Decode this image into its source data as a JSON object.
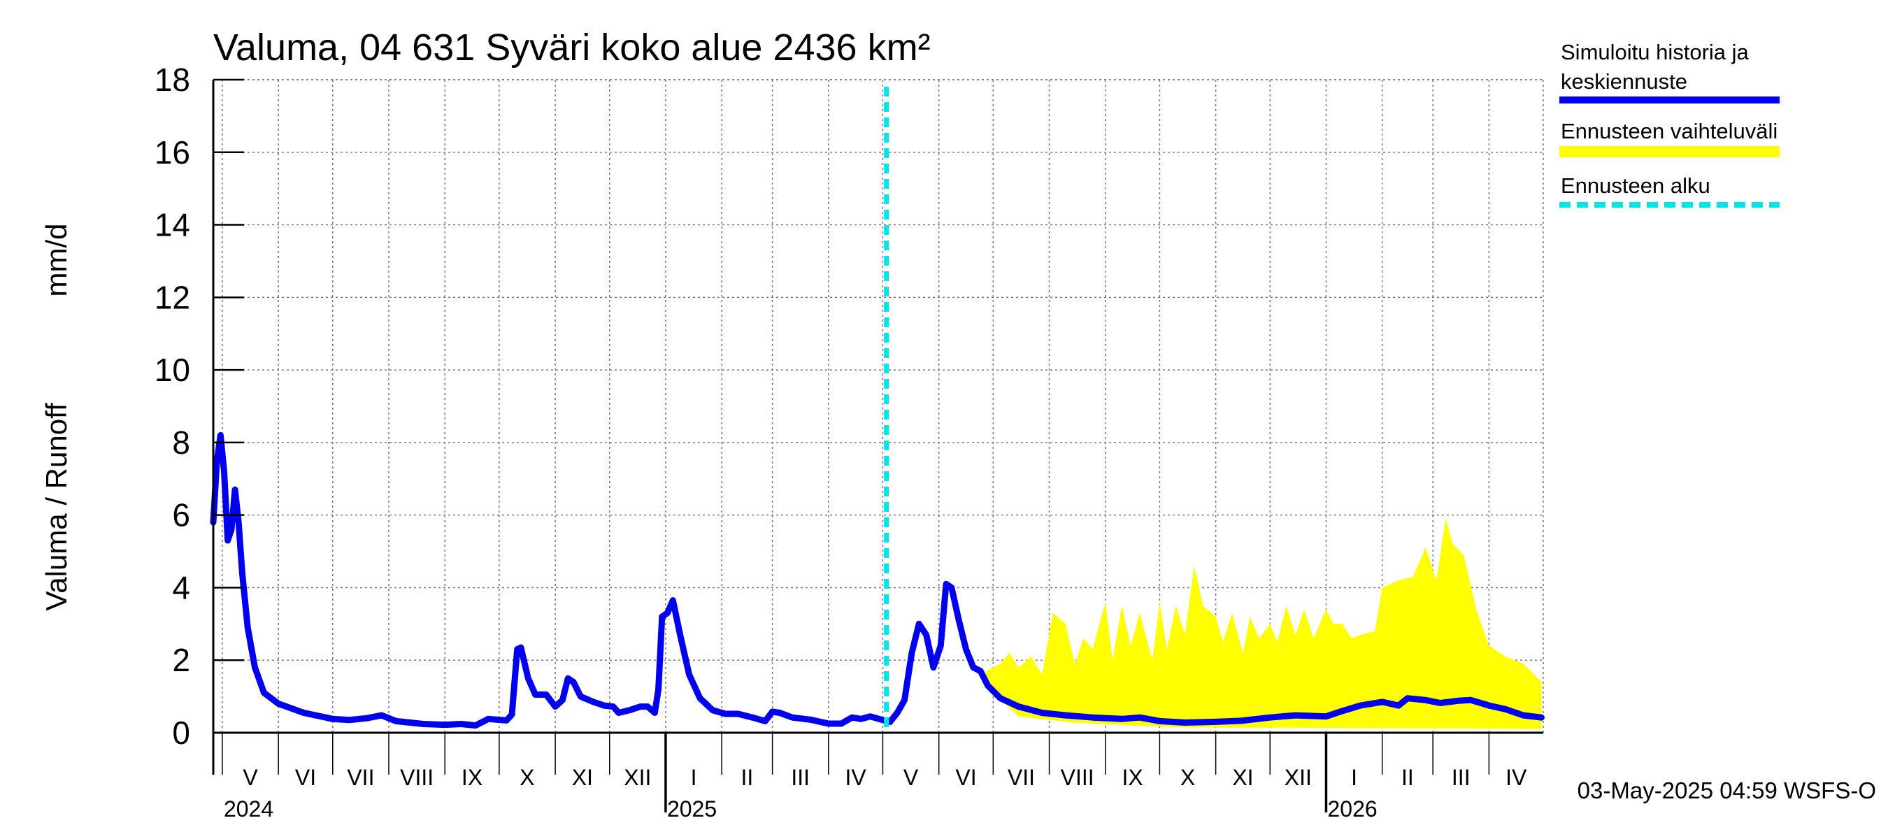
{
  "chart_data": {
    "type": "line",
    "title": "Valuma, 04 631 Syväri koko alue 2436 km²",
    "ylabel_left": "Valuma / Runoff",
    "ylabel_right": "mm/d",
    "ylim": [
      0,
      18
    ],
    "yticks": [
      0,
      2,
      4,
      6,
      8,
      10,
      12,
      14,
      16,
      18
    ],
    "xrange": [
      "2024-04-26",
      "2026-05-01"
    ],
    "forecast_start": "2025-05-03",
    "grid": true,
    "legend_position": "right",
    "month_labels": [
      {
        "label": "V",
        "start": "2024-05-01",
        "end": "2024-06-01"
      },
      {
        "label": "VI",
        "start": "2024-06-01",
        "end": "2024-07-01"
      },
      {
        "label": "VII",
        "start": "2024-07-01",
        "end": "2024-08-01"
      },
      {
        "label": "VIII",
        "start": "2024-08-01",
        "end": "2024-09-01"
      },
      {
        "label": "IX",
        "start": "2024-09-01",
        "end": "2024-10-01"
      },
      {
        "label": "X",
        "start": "2024-10-01",
        "end": "2024-11-01"
      },
      {
        "label": "XI",
        "start": "2024-11-01",
        "end": "2024-12-01"
      },
      {
        "label": "XII",
        "start": "2024-12-01",
        "end": "2025-01-01"
      },
      {
        "label": "I",
        "start": "2025-01-01",
        "end": "2025-02-01"
      },
      {
        "label": "II",
        "start": "2025-02-01",
        "end": "2025-03-01"
      },
      {
        "label": "III",
        "start": "2025-03-01",
        "end": "2025-04-01"
      },
      {
        "label": "IV",
        "start": "2025-04-01",
        "end": "2025-05-01"
      },
      {
        "label": "V",
        "start": "2025-05-01",
        "end": "2025-06-01"
      },
      {
        "label": "VI",
        "start": "2025-06-01",
        "end": "2025-07-01"
      },
      {
        "label": "VII",
        "start": "2025-07-01",
        "end": "2025-08-01"
      },
      {
        "label": "VIII",
        "start": "2025-08-01",
        "end": "2025-09-01"
      },
      {
        "label": "IX",
        "start": "2025-09-01",
        "end": "2025-10-01"
      },
      {
        "label": "X",
        "start": "2025-10-01",
        "end": "2025-11-01"
      },
      {
        "label": "XI",
        "start": "2025-11-01",
        "end": "2025-12-01"
      },
      {
        "label": "XII",
        "start": "2025-12-01",
        "end": "2026-01-01"
      },
      {
        "label": "I",
        "start": "2026-01-01",
        "end": "2026-02-01"
      },
      {
        "label": "II",
        "start": "2026-02-01",
        "end": "2026-03-01"
      },
      {
        "label": "III",
        "start": "2026-03-01",
        "end": "2026-04-01"
      },
      {
        "label": "IV",
        "start": "2026-04-01",
        "end": "2026-05-01"
      }
    ],
    "year_labels": [
      {
        "label": "2024",
        "date": "2024-05-01"
      },
      {
        "label": "2025",
        "date": "2025-01-01"
      },
      {
        "label": "2026",
        "date": "2026-01-01"
      }
    ],
    "series": [
      {
        "name": "Simuloitu historia ja keskiennuste",
        "role": "line",
        "color": "#0000ee",
        "points": [
          [
            "2024-04-26",
            5.8
          ],
          [
            "2024-04-28",
            7.5
          ],
          [
            "2024-04-30",
            8.2
          ],
          [
            "2024-05-02",
            7.2
          ],
          [
            "2024-05-04",
            5.3
          ],
          [
            "2024-05-06",
            5.6
          ],
          [
            "2024-05-08",
            6.7
          ],
          [
            "2024-05-10",
            5.8
          ],
          [
            "2024-05-12",
            4.4
          ],
          [
            "2024-05-15",
            2.9
          ],
          [
            "2024-05-19",
            1.8
          ],
          [
            "2024-05-24",
            1.1
          ],
          [
            "2024-06-01",
            0.8
          ],
          [
            "2024-06-15",
            0.55
          ],
          [
            "2024-07-01",
            0.38
          ],
          [
            "2024-07-10",
            0.35
          ],
          [
            "2024-07-20",
            0.4
          ],
          [
            "2024-07-28",
            0.48
          ],
          [
            "2024-08-05",
            0.32
          ],
          [
            "2024-08-20",
            0.24
          ],
          [
            "2024-09-01",
            0.22
          ],
          [
            "2024-09-10",
            0.24
          ],
          [
            "2024-09-18",
            0.2
          ],
          [
            "2024-09-25",
            0.38
          ],
          [
            "2024-10-05",
            0.34
          ],
          [
            "2024-10-08",
            0.5
          ],
          [
            "2024-10-11",
            2.3
          ],
          [
            "2024-10-13",
            2.35
          ],
          [
            "2024-10-17",
            1.5
          ],
          [
            "2024-10-21",
            1.05
          ],
          [
            "2024-10-27",
            1.05
          ],
          [
            "2024-11-01",
            0.72
          ],
          [
            "2024-11-05",
            0.9
          ],
          [
            "2024-11-08",
            1.5
          ],
          [
            "2024-11-11",
            1.4
          ],
          [
            "2024-11-15",
            1.0
          ],
          [
            "2024-11-22",
            0.85
          ],
          [
            "2024-11-28",
            0.75
          ],
          [
            "2024-12-03",
            0.72
          ],
          [
            "2024-12-06",
            0.55
          ],
          [
            "2024-12-12",
            0.62
          ],
          [
            "2024-12-18",
            0.72
          ],
          [
            "2024-12-22",
            0.72
          ],
          [
            "2024-12-26",
            0.55
          ],
          [
            "2024-12-28",
            1.2
          ],
          [
            "2024-12-30",
            3.2
          ],
          [
            "2025-01-02",
            3.3
          ],
          [
            "2025-01-05",
            3.65
          ],
          [
            "2025-01-09",
            2.7
          ],
          [
            "2025-01-14",
            1.6
          ],
          [
            "2025-01-20",
            0.95
          ],
          [
            "2025-01-27",
            0.62
          ],
          [
            "2025-02-03",
            0.52
          ],
          [
            "2025-02-10",
            0.52
          ],
          [
            "2025-02-18",
            0.42
          ],
          [
            "2025-02-25",
            0.32
          ],
          [
            "2025-03-01",
            0.58
          ],
          [
            "2025-03-05",
            0.55
          ],
          [
            "2025-03-12",
            0.42
          ],
          [
            "2025-03-22",
            0.36
          ],
          [
            "2025-04-01",
            0.25
          ],
          [
            "2025-04-08",
            0.25
          ],
          [
            "2025-04-14",
            0.42
          ],
          [
            "2025-04-19",
            0.38
          ],
          [
            "2025-04-24",
            0.45
          ],
          [
            "2025-05-01",
            0.35
          ],
          [
            "2025-05-05",
            0.3
          ],
          [
            "2025-05-09",
            0.55
          ],
          [
            "2025-05-13",
            0.9
          ],
          [
            "2025-05-17",
            2.2
          ],
          [
            "2025-05-21",
            3.0
          ],
          [
            "2025-05-25",
            2.7
          ],
          [
            "2025-05-29",
            1.8
          ],
          [
            "2025-06-02",
            2.4
          ],
          [
            "2025-06-05",
            4.1
          ],
          [
            "2025-06-08",
            4.0
          ],
          [
            "2025-06-12",
            3.1
          ],
          [
            "2025-06-16",
            2.3
          ],
          [
            "2025-06-20",
            1.8
          ],
          [
            "2025-06-24",
            1.7
          ],
          [
            "2025-06-28",
            1.3
          ],
          [
            "2025-07-05",
            0.95
          ],
          [
            "2025-07-15",
            0.72
          ],
          [
            "2025-07-28",
            0.55
          ],
          [
            "2025-08-10",
            0.48
          ],
          [
            "2025-08-25",
            0.42
          ],
          [
            "2025-09-10",
            0.38
          ],
          [
            "2025-09-20",
            0.42
          ],
          [
            "2025-10-01",
            0.32
          ],
          [
            "2025-10-15",
            0.28
          ],
          [
            "2025-11-01",
            0.3
          ],
          [
            "2025-11-15",
            0.33
          ],
          [
            "2025-12-01",
            0.42
          ],
          [
            "2025-12-15",
            0.48
          ],
          [
            "2026-01-01",
            0.45
          ],
          [
            "2026-01-10",
            0.6
          ],
          [
            "2026-01-20",
            0.75
          ],
          [
            "2026-02-01",
            0.85
          ],
          [
            "2026-02-10",
            0.75
          ],
          [
            "2026-02-15",
            0.95
          ],
          [
            "2026-02-25",
            0.9
          ],
          [
            "2026-03-05",
            0.82
          ],
          [
            "2026-03-15",
            0.88
          ],
          [
            "2026-03-22",
            0.9
          ],
          [
            "2026-04-01",
            0.75
          ],
          [
            "2026-04-10",
            0.65
          ],
          [
            "2026-04-20",
            0.48
          ],
          [
            "2026-04-30",
            0.42
          ]
        ]
      },
      {
        "name": "Ennusteen vaihteluväli",
        "role": "band",
        "color": "#ffff00",
        "upper": [
          [
            "2025-06-27",
            1.7
          ],
          [
            "2025-07-05",
            1.9
          ],
          [
            "2025-07-10",
            2.2
          ],
          [
            "2025-07-15",
            1.8
          ],
          [
            "2025-07-22",
            2.1
          ],
          [
            "2025-07-28",
            1.6
          ],
          [
            "2025-08-03",
            3.3
          ],
          [
            "2025-08-10",
            3.0
          ],
          [
            "2025-08-15",
            1.9
          ],
          [
            "2025-08-20",
            2.6
          ],
          [
            "2025-08-25",
            2.3
          ],
          [
            "2025-09-01",
            3.6
          ],
          [
            "2025-09-05",
            2.0
          ],
          [
            "2025-09-10",
            3.5
          ],
          [
            "2025-09-15",
            2.4
          ],
          [
            "2025-09-20",
            3.3
          ],
          [
            "2025-09-27",
            2.0
          ],
          [
            "2025-10-01",
            3.6
          ],
          [
            "2025-10-05",
            2.3
          ],
          [
            "2025-10-10",
            3.5
          ],
          [
            "2025-10-15",
            2.7
          ],
          [
            "2025-10-20",
            4.6
          ],
          [
            "2025-10-25",
            3.5
          ],
          [
            "2025-11-01",
            3.2
          ],
          [
            "2025-11-05",
            2.5
          ],
          [
            "2025-11-10",
            3.3
          ],
          [
            "2025-11-16",
            2.2
          ],
          [
            "2025-11-20",
            3.2
          ],
          [
            "2025-11-25",
            2.6
          ],
          [
            "2025-12-01",
            3.0
          ],
          [
            "2025-12-05",
            2.5
          ],
          [
            "2025-12-10",
            3.5
          ],
          [
            "2025-12-15",
            2.7
          ],
          [
            "2025-12-20",
            3.4
          ],
          [
            "2025-12-25",
            2.6
          ],
          [
            "2026-01-01",
            3.4
          ],
          [
            "2026-01-05",
            3.0
          ],
          [
            "2026-01-10",
            3.0
          ],
          [
            "2026-01-15",
            2.6
          ],
          [
            "2026-01-20",
            2.7
          ],
          [
            "2026-01-28",
            2.8
          ],
          [
            "2026-02-01",
            4.0
          ],
          [
            "2026-02-10",
            4.2
          ],
          [
            "2026-02-18",
            4.3
          ],
          [
            "2026-02-25",
            5.1
          ],
          [
            "2026-03-03",
            4.2
          ],
          [
            "2026-03-08",
            5.9
          ],
          [
            "2026-03-12",
            5.2
          ],
          [
            "2026-03-18",
            4.9
          ],
          [
            "2026-03-25",
            3.4
          ],
          [
            "2026-04-01",
            2.4
          ],
          [
            "2026-04-10",
            2.1
          ],
          [
            "2026-04-20",
            1.9
          ],
          [
            "2026-04-30",
            1.4
          ]
        ],
        "lower": [
          [
            "2025-06-27",
            1.3
          ],
          [
            "2025-07-15",
            0.45
          ],
          [
            "2025-08-15",
            0.28
          ],
          [
            "2025-09-15",
            0.2
          ],
          [
            "2025-10-15",
            0.15
          ],
          [
            "2025-11-15",
            0.14
          ],
          [
            "2025-12-15",
            0.14
          ],
          [
            "2026-01-15",
            0.13
          ],
          [
            "2026-02-15",
            0.12
          ],
          [
            "2026-03-15",
            0.12
          ],
          [
            "2026-04-15",
            0.11
          ],
          [
            "2026-04-30",
            0.1
          ]
        ]
      },
      {
        "name": "Ennusteen alku",
        "role": "vline",
        "color": "#00e5e5",
        "date": "2025-05-03"
      }
    ],
    "footer": "03-May-2025 04:59 WSFS-O"
  }
}
